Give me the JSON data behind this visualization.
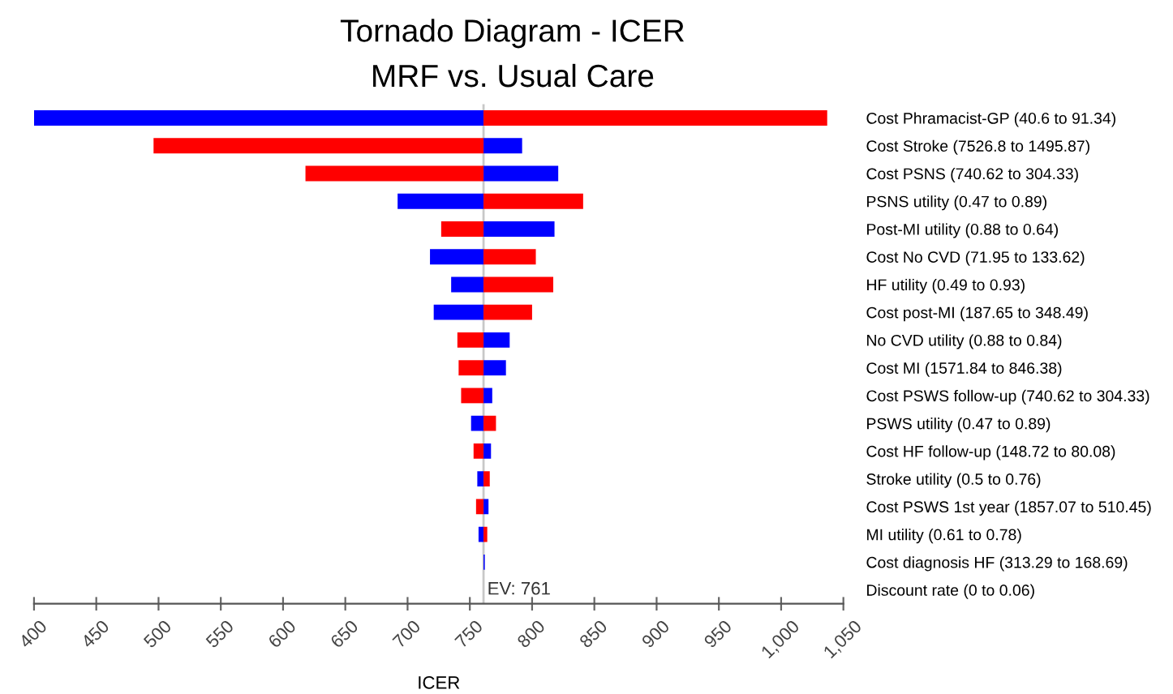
{
  "chart_data": {
    "type": "bar",
    "orientation": "horizontal",
    "title": "Tornado Diagram - ICER",
    "subtitle": "MRF vs. Usual Care",
    "xlabel": "ICER",
    "categories": [
      "Cost Phramacist-GP (40.6 to 91.34)",
      "Cost Stroke (7526.8 to 1495.87)",
      "Cost PSNS (740.62 to 304.33)",
      "PSNS utility (0.47 to 0.89)",
      "Post-MI utility (0.88 to 0.64)",
      "Cost No CVD (71.95 to 133.62)",
      "HF utility (0.49 to 0.93)",
      "Cost post-MI (187.65 to 348.49)",
      "No CVD utility (0.88 to 0.84)",
      "Cost MI (1571.84 to 846.38)",
      "Cost PSWS follow-up (740.62 to 304.33)",
      "PSWS utility (0.47 to 0.89)",
      "Cost HF follow-up (148.72 to 80.08)",
      "Stroke utility (0.5 to 0.76)",
      "Cost PSWS 1st year (1857.07 to 510.45)",
      "MI utility (0.61 to 0.78)",
      "Cost diagnosis HF (313.29 to 168.69)",
      "Discount rate (0 to 0.06)"
    ],
    "series": [
      {
        "color": "#0000ff",
        "base": [
          761,
          761,
          761,
          761,
          761,
          761,
          761,
          761,
          761,
          761,
          761,
          761,
          761,
          761,
          761,
          761,
          761,
          null
        ],
        "values": [
          -361,
          31,
          60,
          -69,
          57,
          -43,
          -26,
          -40,
          21,
          18,
          7,
          -10,
          6,
          -5,
          4,
          -4,
          1,
          null
        ]
      },
      {
        "color": "#ff0000",
        "base": [
          761,
          761,
          761,
          761,
          761,
          761,
          761,
          761,
          761,
          761,
          761,
          761,
          761,
          761,
          761,
          761,
          null,
          null
        ],
        "values": [
          276,
          -265,
          -143,
          80,
          -34,
          42,
          56,
          39,
          -21,
          -20,
          -18,
          10,
          -8,
          5,
          -6,
          3,
          null,
          null
        ]
      }
    ],
    "xlim": [
      400,
      1050
    ],
    "xticks": [
      400,
      450,
      500,
      550,
      600,
      650,
      700,
      750,
      800,
      850,
      900,
      950,
      {
        "value": 1000,
        "label": "1,000"
      },
      {
        "value": 1050,
        "label": "1,050"
      }
    ],
    "ref_lines": [
      {
        "axis": "x",
        "value": 761,
        "label": "EV: 761",
        "color": "#c8c8c8",
        "line_style": "solid"
      }
    ],
    "grid": false
  }
}
